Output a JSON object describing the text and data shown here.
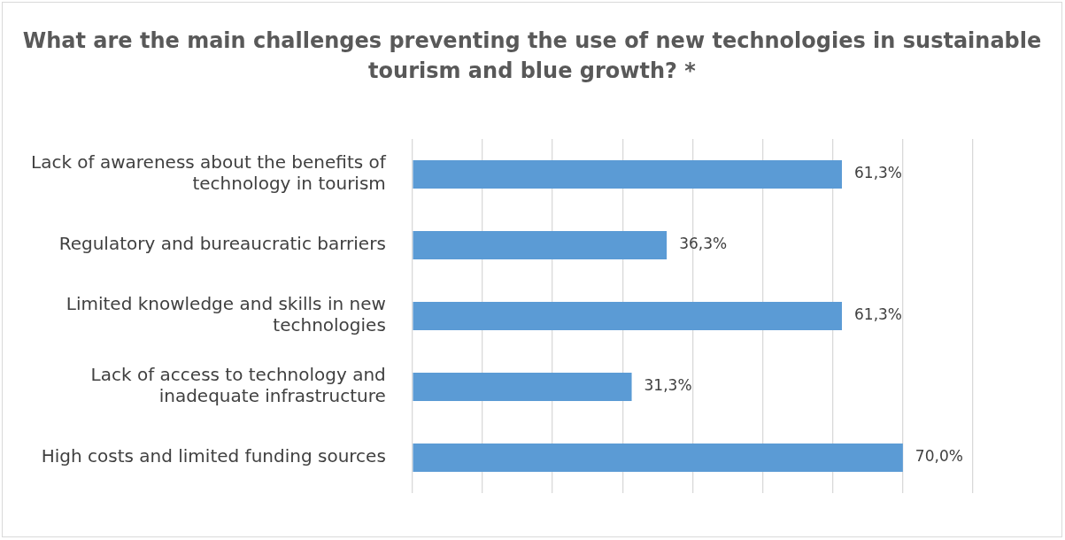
{
  "chart_data": {
    "type": "bar",
    "orientation": "horizontal",
    "title": "What are the main challenges preventing the use of new technologies in sustainable tourism and blue growth? *",
    "categories": [
      "Lack of awareness about the benefits of technology in tourism",
      "Regulatory and bureaucratic barriers",
      "Limited knowledge and skills in new technologies",
      "Lack of access to technology and inadequate infrastructure",
      "High costs and limited funding sources"
    ],
    "values": [
      61.3,
      36.3,
      61.3,
      31.3,
      70.0
    ],
    "value_labels": [
      "61,3%",
      "36,3%",
      "61,3%",
      "31,3%",
      "70,0%"
    ],
    "color": "#5b9bd5",
    "xlim": [
      0,
      80
    ],
    "xticks": [
      {
        "value": 0,
        "label": null
      },
      {
        "value": 10,
        "label": null
      },
      {
        "value": 20,
        "label": null
      },
      {
        "value": 30,
        "label": null
      },
      {
        "value": 40,
        "label": null
      },
      {
        "value": 50,
        "label": null
      },
      {
        "value": 60,
        "label": null
      },
      {
        "value": 70,
        "label": null
      },
      {
        "value": 80,
        "label": null
      }
    ],
    "grid": "x",
    "tick_labels": "y",
    "legend": false
  }
}
